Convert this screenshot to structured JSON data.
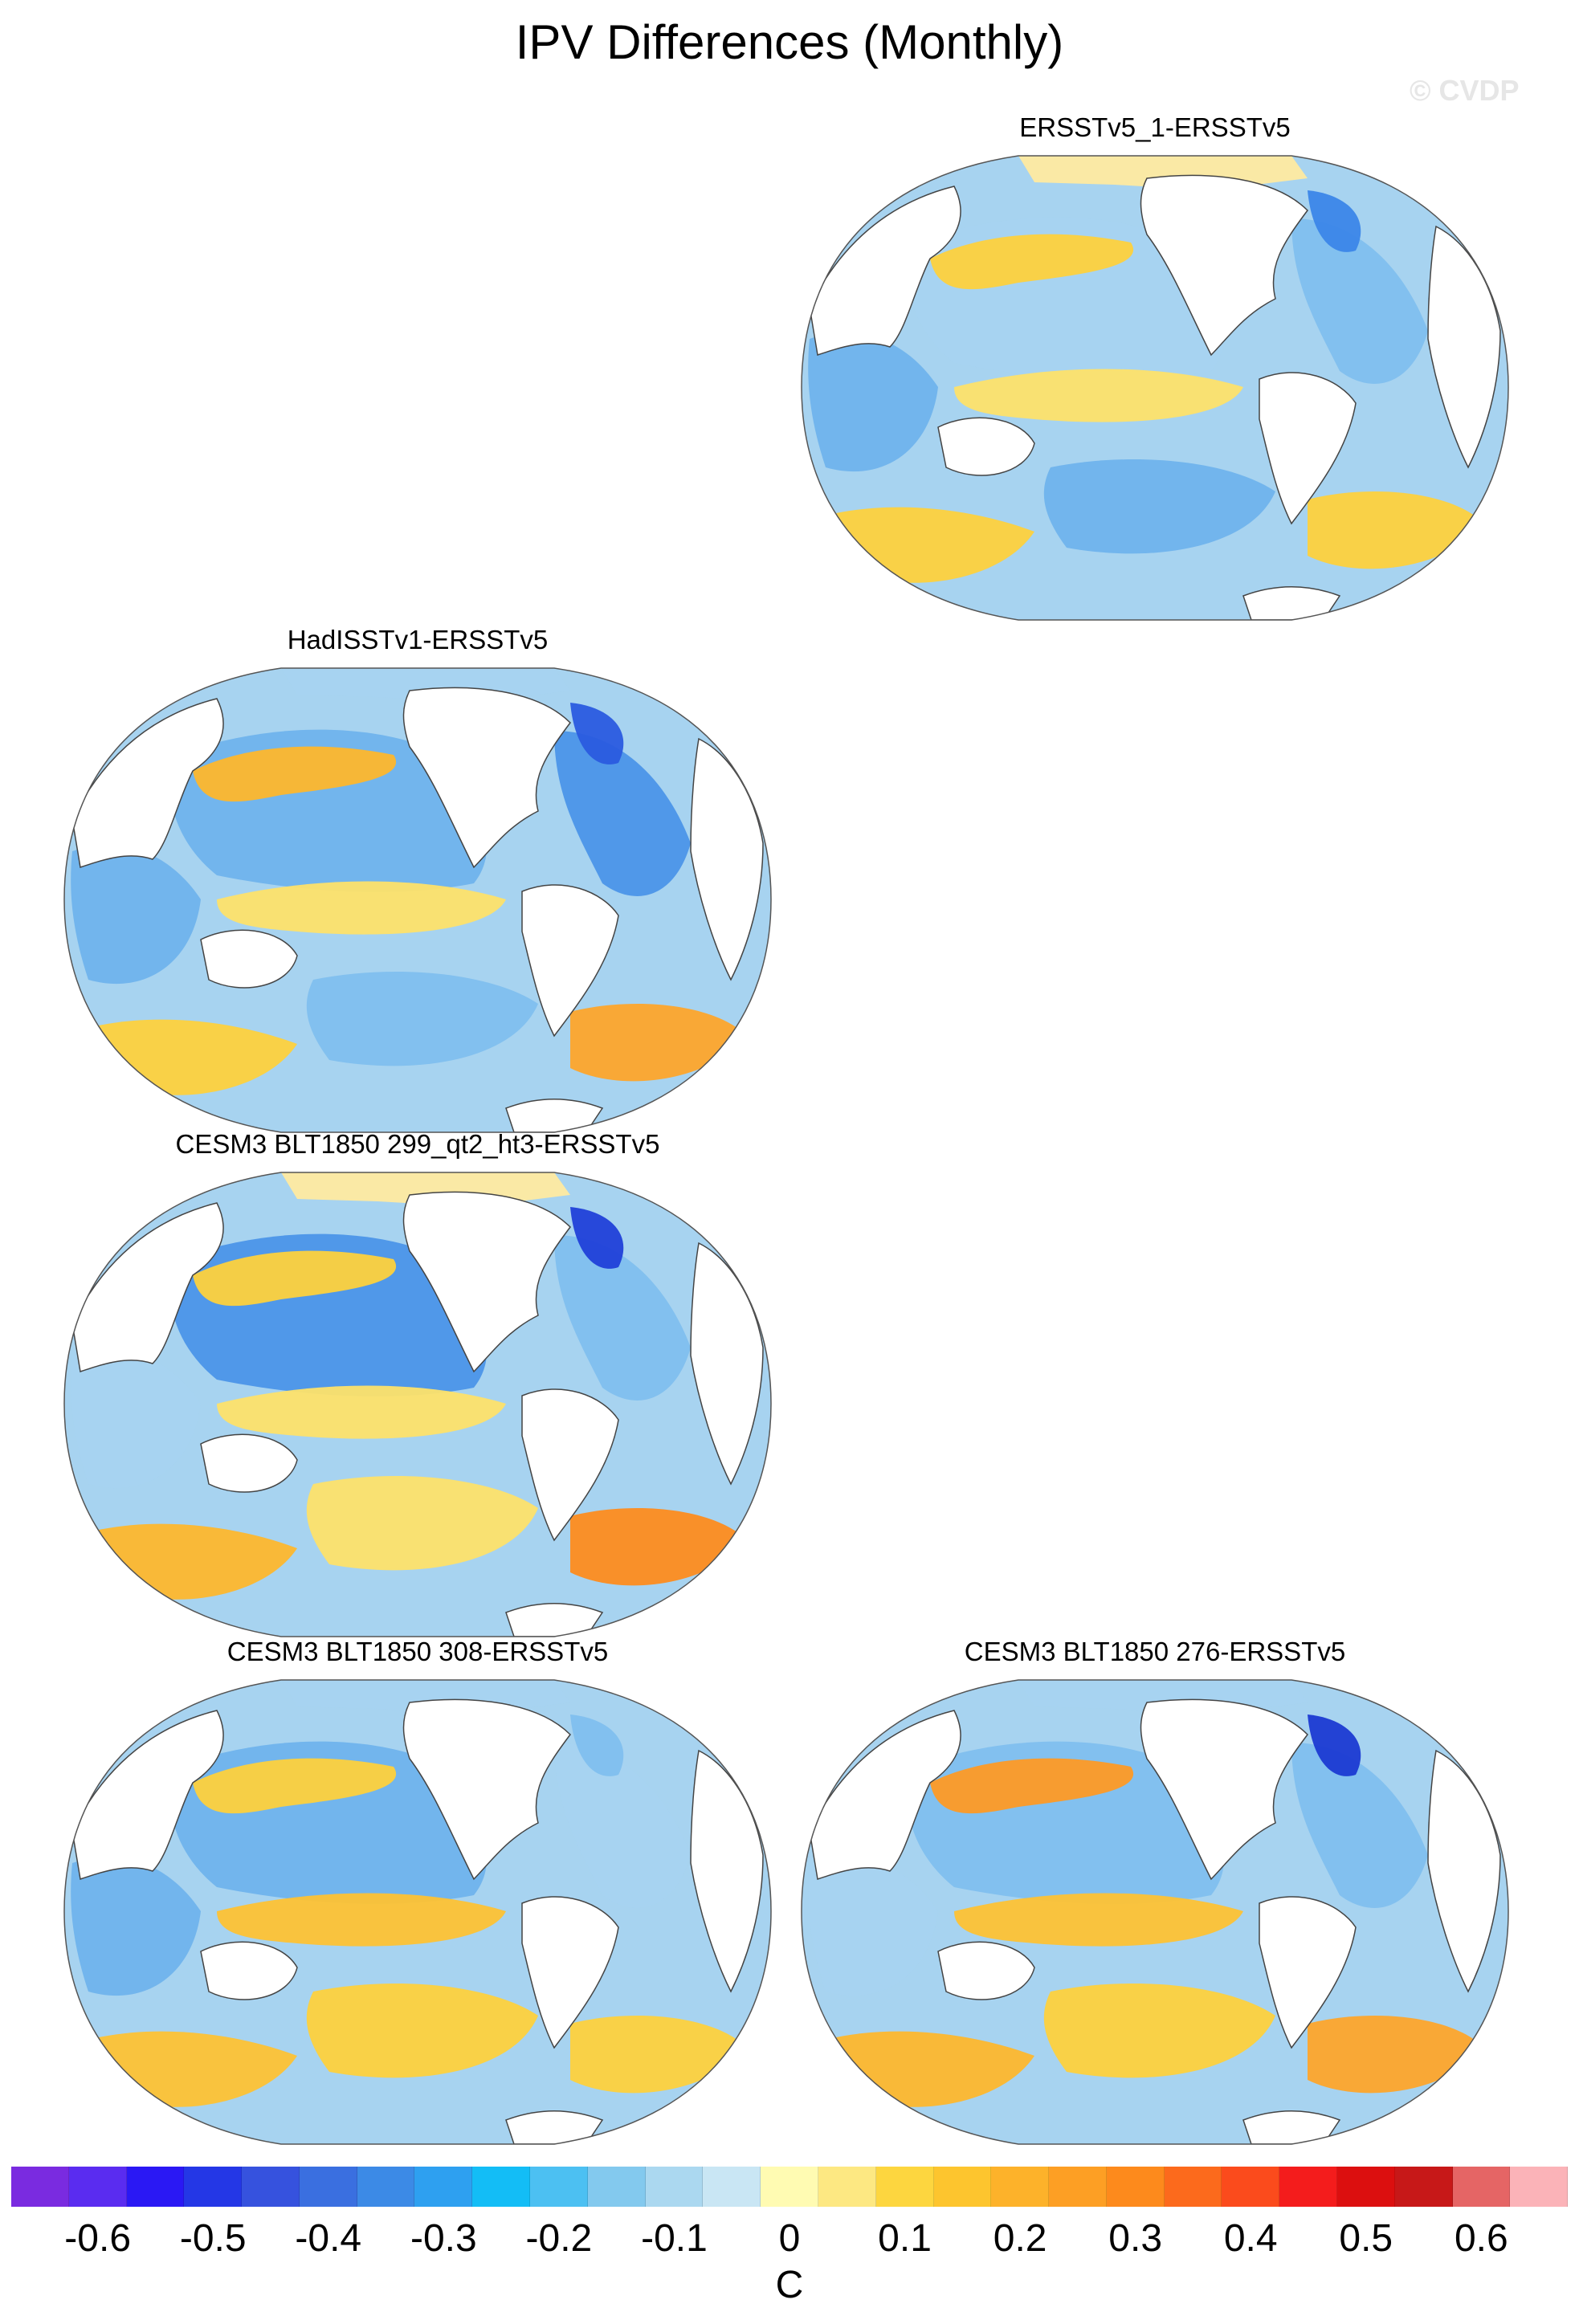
{
  "header": {
    "title": "IPV Differences (Monthly)",
    "watermark": "© CVDP"
  },
  "panels": [
    {
      "id": "p1",
      "title": "ERSSTv5_1-ERSSTv5",
      "blobs": [
        {
          "color": "#feeaa0",
          "shape": "band-north"
        },
        {
          "color": "#a7d3f0",
          "shape": "north-pacific"
        },
        {
          "color": "#fdd13d",
          "shape": "kuroshio"
        },
        {
          "color": "#7fbfee",
          "shape": "north-atlantic"
        },
        {
          "color": "#3b86e8",
          "shape": "labrador"
        },
        {
          "color": "#fde26a",
          "shape": "tropical-pacific"
        },
        {
          "color": "#6fb3ec",
          "shape": "indian"
        },
        {
          "color": "#fdd13d",
          "shape": "southern-ocean-indian"
        },
        {
          "color": "#fdd13d",
          "shape": "south-atlantic"
        },
        {
          "color": "#6fb3ec",
          "shape": "south-pacific"
        }
      ]
    },
    {
      "id": "p2",
      "title": "HadISSTv1-ERSSTv5",
      "blobs": [
        {
          "color": "#a7d3f0",
          "shape": "band-north"
        },
        {
          "color": "#6fb3ec",
          "shape": "north-pacific"
        },
        {
          "color": "#fdb72d",
          "shape": "kuroshio"
        },
        {
          "color": "#4b95e8",
          "shape": "north-atlantic"
        },
        {
          "color": "#2a5bdf",
          "shape": "labrador"
        },
        {
          "color": "#fde26a",
          "shape": "tropical-pacific"
        },
        {
          "color": "#6fb3ec",
          "shape": "indian"
        },
        {
          "color": "#fdd13d",
          "shape": "southern-ocean-indian"
        },
        {
          "color": "#fda52b",
          "shape": "south-atlantic"
        },
        {
          "color": "#7fbfee",
          "shape": "south-pacific"
        }
      ]
    },
    {
      "id": "p3",
      "title": "CESM3 BLT1850 299_qt2_ht3-ERSSTv5",
      "blobs": [
        {
          "color": "#feeaa0",
          "shape": "band-north"
        },
        {
          "color": "#4b95e8",
          "shape": "north-pacific"
        },
        {
          "color": "#fdd13d",
          "shape": "kuroshio"
        },
        {
          "color": "#7fbfee",
          "shape": "north-atlantic"
        },
        {
          "color": "#2040d8",
          "shape": "labrador"
        },
        {
          "color": "#fde26a",
          "shape": "tropical-pacific"
        },
        {
          "color": "#a7d3f0",
          "shape": "indian"
        },
        {
          "color": "#fdb72d",
          "shape": "southern-ocean-indian"
        },
        {
          "color": "#fd8c1d",
          "shape": "south-atlantic"
        },
        {
          "color": "#fde26a",
          "shape": "south-pacific"
        }
      ]
    },
    {
      "id": "p4",
      "title": "CESM3 BLT1850 308-ERSSTv5",
      "blobs": [
        {
          "color": "#a7d3f0",
          "shape": "band-north"
        },
        {
          "color": "#6fb3ec",
          "shape": "north-pacific"
        },
        {
          "color": "#fdd13d",
          "shape": "kuroshio"
        },
        {
          "color": "#a7d3f0",
          "shape": "north-atlantic"
        },
        {
          "color": "#7fbfee",
          "shape": "labrador"
        },
        {
          "color": "#fdc234",
          "shape": "tropical-pacific"
        },
        {
          "color": "#6fb3ec",
          "shape": "indian"
        },
        {
          "color": "#fdc234",
          "shape": "southern-ocean-indian"
        },
        {
          "color": "#fdd13d",
          "shape": "south-atlantic"
        },
        {
          "color": "#fdd13d",
          "shape": "south-pacific"
        }
      ]
    },
    {
      "id": "p5",
      "title": "CESM3 BLT1850 276-ERSSTv5",
      "blobs": [
        {
          "color": "#a7d3f0",
          "shape": "band-north"
        },
        {
          "color": "#7fbfee",
          "shape": "north-pacific"
        },
        {
          "color": "#fd9a25",
          "shape": "kuroshio"
        },
        {
          "color": "#7fbfee",
          "shape": "north-atlantic"
        },
        {
          "color": "#1b3ad2",
          "shape": "labrador"
        },
        {
          "color": "#fdc234",
          "shape": "tropical-pacific"
        },
        {
          "color": "#a7d3f0",
          "shape": "indian"
        },
        {
          "color": "#fdb72d",
          "shape": "southern-ocean-indian"
        },
        {
          "color": "#fda52b",
          "shape": "south-atlantic"
        },
        {
          "color": "#fdd13d",
          "shape": "south-pacific"
        }
      ]
    }
  ],
  "colorbar": {
    "colors": [
      "#7a2be0",
      "#5a2cf0",
      "#2a18f4",
      "#2437e6",
      "#3652de",
      "#3a6fe0",
      "#3c8ae6",
      "#2ea0f0",
      "#13bdf6",
      "#4cc0f2",
      "#83c9ee",
      "#abd8f0",
      "#c9e6f4",
      "#fffbb2",
      "#fde882",
      "#fdd63f",
      "#fdc52e",
      "#fdb22a",
      "#fd9f24",
      "#fd8a1c",
      "#fc6a1c",
      "#fb4b1c",
      "#f41c1c",
      "#dc0f0f",
      "#c71818",
      "#e56565",
      "#fbb3b8"
    ],
    "ticks": [
      "-0.6",
      "-0.5",
      "-0.4",
      "-0.3",
      "-0.2",
      "-0.1",
      "0",
      "0.1",
      "0.2",
      "0.3",
      "0.4",
      "0.5",
      "0.6"
    ],
    "units": "C"
  }
}
